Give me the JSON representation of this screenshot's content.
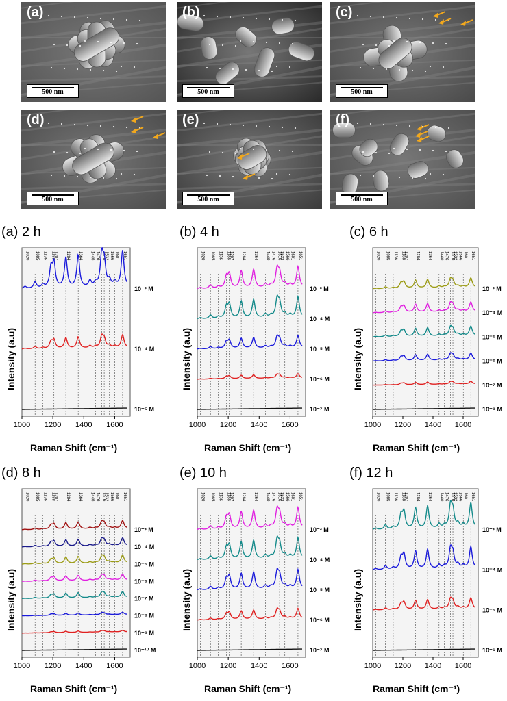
{
  "figure": {
    "sem_panels": [
      {
        "label": "(a)",
        "scale": "500 nm",
        "arrows": 0
      },
      {
        "label": "(b)",
        "scale": "500 nm",
        "arrows": 0
      },
      {
        "label": "(c)",
        "scale": "500 nm",
        "arrows": 3
      },
      {
        "label": "(d)",
        "scale": "500 nm",
        "arrows": 3
      },
      {
        "label": "(e)",
        "scale": "500 nm",
        "arrows": 2
      },
      {
        "label": "(f)",
        "scale": "500 nm",
        "arrows": 3
      }
    ],
    "arrow_color": "#f2a81d"
  },
  "chart_data": [
    {
      "type": "line",
      "title": "(a) 2 h",
      "xlabel": "Raman Shift (cm⁻¹)",
      "ylabel": "Intensity (a.u)",
      "xlim": [
        1000,
        1700
      ],
      "xticks": [
        "1000",
        "1200",
        "1400",
        "1600"
      ],
      "peaks": [
        "1020",
        "1085",
        "1136",
        "1188",
        "1207",
        "1284",
        "1364",
        "1440",
        "1476",
        "1516",
        "1532",
        "1566",
        "1601",
        "1651"
      ],
      "series": [
        {
          "name": "10⁻³ M",
          "color": "#1a1adb",
          "amplitude": 1.0
        },
        {
          "name": "10⁻⁴ M",
          "color": "#e02020",
          "amplitude": 0.35
        },
        {
          "name": "10⁻⁵ M",
          "color": "#111111",
          "amplitude": 0.0
        }
      ]
    },
    {
      "type": "line",
      "title": "(b) 4 h",
      "xlabel": "Raman Shift (cm⁻¹)",
      "ylabel": "Intensity (a.u)",
      "xlim": [
        1000,
        1700
      ],
      "xticks": [
        "1000",
        "1200",
        "1400",
        "1600"
      ],
      "peaks": [
        "1020",
        "1085",
        "1136",
        "1188",
        "1207",
        "1284",
        "1364",
        "1440",
        "1476",
        "1516",
        "1532",
        "1566",
        "1601",
        "1651"
      ],
      "series": [
        {
          "name": "10⁻³ M",
          "color": "#e020e0",
          "amplitude": 0.6
        },
        {
          "name": "10⁻⁴ M",
          "color": "#138a8a",
          "amplitude": 0.6
        },
        {
          "name": "10⁻⁵ M",
          "color": "#1a1adb",
          "amplitude": 0.35
        },
        {
          "name": "10⁻⁶ M",
          "color": "#e02020",
          "amplitude": 0.12
        },
        {
          "name": "10⁻⁷ M",
          "color": "#111111",
          "amplitude": 0.0
        }
      ]
    },
    {
      "type": "line",
      "title": "(c) 6 h",
      "xlabel": "Raman Shift (cm⁻¹)",
      "ylabel": "Intensity (a.u)",
      "xlim": [
        1000,
        1700
      ],
      "xticks": [
        "1000",
        "1200",
        "1400",
        "1600"
      ],
      "peaks": [
        "1020",
        "1085",
        "1136",
        "1188",
        "1207",
        "1284",
        "1364",
        "1440",
        "1476",
        "1516",
        "1532",
        "1566",
        "1601",
        "1651"
      ],
      "series": [
        {
          "name": "10⁻³ M",
          "color": "#9c9c16",
          "amplitude": 0.35
        },
        {
          "name": "10⁻⁴ M",
          "color": "#e020e0",
          "amplitude": 0.35
        },
        {
          "name": "10⁻⁵ M",
          "color": "#138a8a",
          "amplitude": 0.35
        },
        {
          "name": "10⁻⁶ M",
          "color": "#1a1adb",
          "amplitude": 0.25
        },
        {
          "name": "10⁻⁷ M",
          "color": "#e02020",
          "amplitude": 0.1
        },
        {
          "name": "10⁻⁸ M",
          "color": "#111111",
          "amplitude": 0.0
        }
      ]
    },
    {
      "type": "line",
      "title": "(d) 8 h",
      "xlabel": "Raman Shift (cm⁻¹)",
      "ylabel": "Intensity (a.u)",
      "xlim": [
        1000,
        1700
      ],
      "xticks": [
        "1000",
        "1200",
        "1400",
        "1600"
      ],
      "peaks": [
        "1020",
        "1085",
        "1136",
        "1188",
        "1207",
        "1284",
        "1364",
        "1440",
        "1476",
        "1516",
        "1532",
        "1566",
        "1601",
        "1651"
      ],
      "series": [
        {
          "name": "10⁻³ M",
          "color": "#a01010",
          "amplitude": 0.4
        },
        {
          "name": "10⁻⁴ M",
          "color": "#1a1a8a",
          "amplitude": 0.4
        },
        {
          "name": "10⁻⁵ M",
          "color": "#9c9c16",
          "amplitude": 0.4
        },
        {
          "name": "10⁻⁶ M",
          "color": "#e020e0",
          "amplitude": 0.3
        },
        {
          "name": "10⁻⁷ M",
          "color": "#138a8a",
          "amplitude": 0.3
        },
        {
          "name": "10⁻⁸ M",
          "color": "#1a1adb",
          "amplitude": 0.12
        },
        {
          "name": "10⁻⁹ M",
          "color": "#e02020",
          "amplitude": 0.08
        },
        {
          "name": "10⁻¹⁰ M",
          "color": "#111111",
          "amplitude": 0.0
        }
      ]
    },
    {
      "type": "line",
      "title": "(e) 10 h",
      "xlabel": "Raman Shift (cm⁻¹)",
      "ylabel": "Intensity (a.u)",
      "xlim": [
        1000,
        1700
      ],
      "xticks": [
        "1000",
        "1200",
        "1400",
        "1600"
      ],
      "peaks": [
        "1020",
        "1085",
        "1136",
        "1188",
        "1207",
        "1284",
        "1364",
        "1440",
        "1476",
        "1516",
        "1532",
        "1566",
        "1601",
        "1651"
      ],
      "series": [
        {
          "name": "10⁻³ M",
          "color": "#e020e0",
          "amplitude": 0.6
        },
        {
          "name": "10⁻⁴ M",
          "color": "#138a8a",
          "amplitude": 0.6
        },
        {
          "name": "10⁻⁵ M",
          "color": "#1a1adb",
          "amplitude": 0.55
        },
        {
          "name": "10⁻⁶ M",
          "color": "#e02020",
          "amplitude": 0.3
        },
        {
          "name": "10⁻⁷ M",
          "color": "#111111",
          "amplitude": 0.0
        }
      ]
    },
    {
      "type": "line",
      "title": "(f) 12 h",
      "xlabel": "Raman Shift (cm⁻¹)",
      "ylabel": "Intensity (a.u)",
      "xlim": [
        1000,
        1700
      ],
      "xticks": [
        "1000",
        "1200",
        "1400",
        "1600"
      ],
      "peaks": [
        "1020",
        "1085",
        "1136",
        "1188",
        "1207",
        "1284",
        "1364",
        "1440",
        "1476",
        "1516",
        "1532",
        "1566",
        "1601",
        "1651"
      ],
      "series": [
        {
          "name": "10⁻³ M",
          "color": "#138a8a",
          "amplitude": 0.7
        },
        {
          "name": "10⁻⁴ M",
          "color": "#1a1adb",
          "amplitude": 0.6
        },
        {
          "name": "10⁻⁵ M",
          "color": "#e02020",
          "amplitude": 0.3
        },
        {
          "name": "10⁻⁶ M",
          "color": "#111111",
          "amplitude": 0.0
        }
      ]
    }
  ]
}
